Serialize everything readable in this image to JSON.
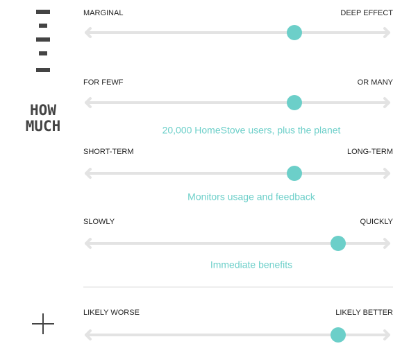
{
  "icon_label": {
    "line1": "HOW",
    "line2": "MUCH"
  },
  "sliders": [
    {
      "left": "MARGINAL",
      "right": "DEEP EFFECT"
    },
    {
      "left": "FOR FEWF",
      "right": "OR MANY",
      "caption": "20,000 HomeStove users, plus the planet"
    },
    {
      "left": "SHORT-TERM",
      "right": "LONG-TERM",
      "caption": "Monitors usage and feedback"
    },
    {
      "left": "SLOWLY",
      "right": "QUICKLY",
      "caption": "Immediate benefits"
    },
    {
      "left": "LIKELY WORSE",
      "right": "LIKELY BETTER"
    }
  ]
}
